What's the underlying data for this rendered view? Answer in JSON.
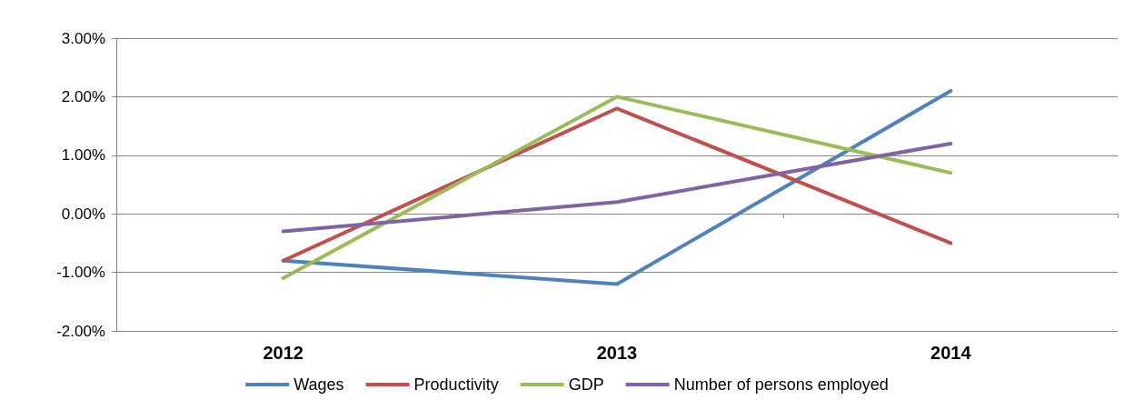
{
  "chart_data": {
    "type": "line",
    "categories": [
      "2012",
      "2013",
      "2014"
    ],
    "series": [
      {
        "name": "Wages",
        "color": "#4f81bd",
        "values": [
          -0.8,
          -1.2,
          2.1
        ]
      },
      {
        "name": "Productivity",
        "color": "#c0504d",
        "values": [
          -0.8,
          1.8,
          -0.5
        ]
      },
      {
        "name": "GDP",
        "color": "#9bbb59",
        "values": [
          -1.1,
          2.0,
          0.7
        ]
      },
      {
        "name": "Number of persons employed",
        "color": "#8064a2",
        "values": [
          -0.3,
          0.2,
          1.2
        ]
      }
    ],
    "ylim": [
      -2,
      3
    ],
    "yticks": [
      {
        "value": -2,
        "label": "-2.00%"
      },
      {
        "value": -1,
        "label": "-1.00%"
      },
      {
        "value": 0,
        "label": "0.00%"
      },
      {
        "value": 1,
        "label": "1.00%"
      },
      {
        "value": 2,
        "label": "2.00%"
      },
      {
        "value": 3,
        "label": "3.00%"
      }
    ],
    "grid": "y",
    "legend": "bottom",
    "marker": "none",
    "line_style": "solid"
  }
}
